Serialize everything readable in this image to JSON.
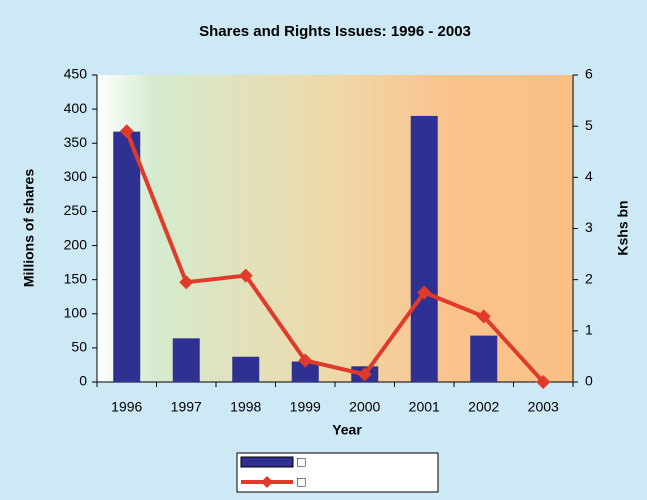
{
  "chart_data": {
    "type": "bar_line",
    "title": "Shares and Rights Issues:  1996 - 2003",
    "xlabel": "Year",
    "ylabel": "Millions of shares",
    "y2label": "Kshs bn",
    "categories": [
      "1996",
      "1997",
      "1998",
      "1999",
      "2000",
      "2001",
      "2002",
      "2003"
    ],
    "series": [
      {
        "name": "□",
        "type": "bar",
        "color": "#2e3192",
        "values": [
          367,
          64,
          37,
          30,
          23,
          390,
          68,
          0
        ]
      },
      {
        "name": "□",
        "type": "line",
        "axis": "y2",
        "color": "#e03a2a",
        "values": [
          4.9,
          1.95,
          2.08,
          0.42,
          0.15,
          1.75,
          1.28,
          0
        ]
      }
    ],
    "ylim": [
      0,
      450
    ],
    "yticks": [
      0,
      50,
      100,
      150,
      200,
      250,
      300,
      350,
      400,
      450
    ],
    "y2lim": [
      0,
      6
    ],
    "y2ticks": [
      0,
      1,
      2,
      3,
      4,
      5,
      6
    ]
  }
}
